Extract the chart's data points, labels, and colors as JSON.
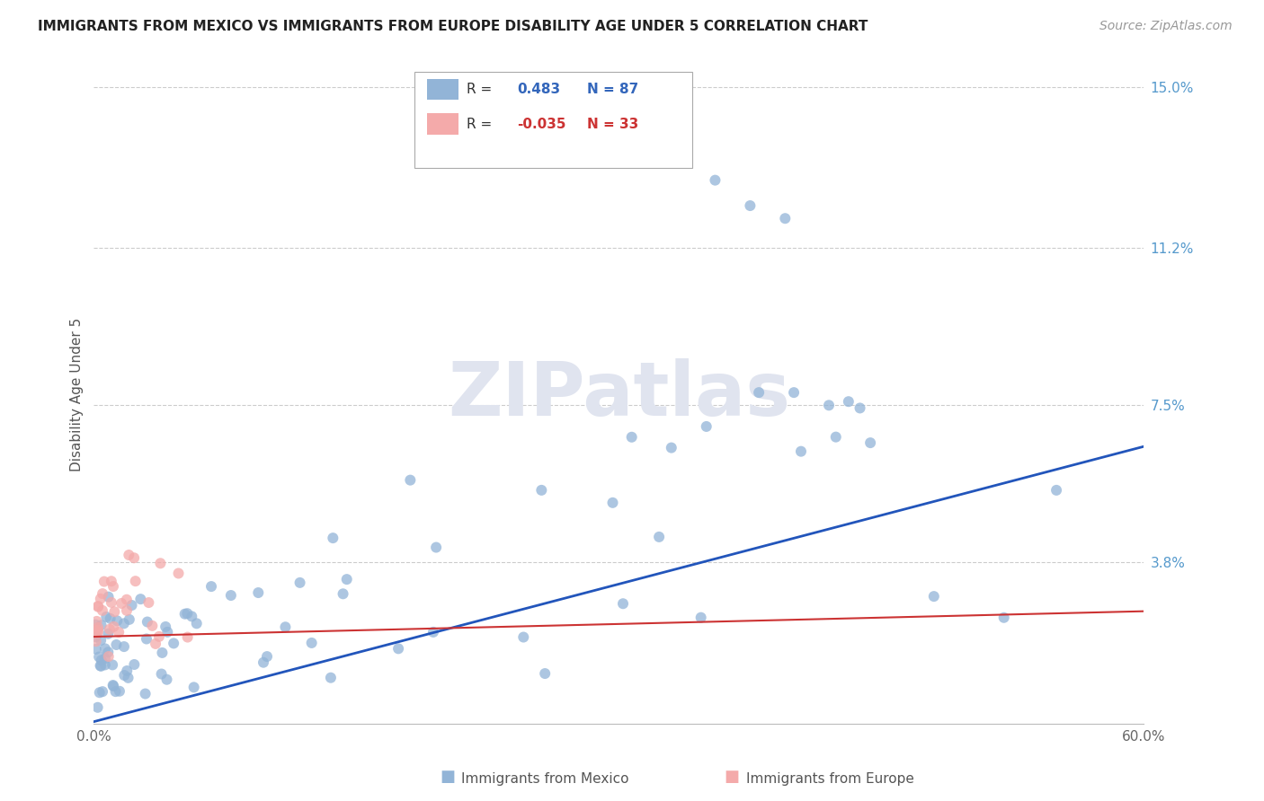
{
  "title": "IMMIGRANTS FROM MEXICO VS IMMIGRANTS FROM EUROPE DISABILITY AGE UNDER 5 CORRELATION CHART",
  "source": "Source: ZipAtlas.com",
  "ylabel": "Disability Age Under 5",
  "legend_mexico": "Immigrants from Mexico",
  "legend_europe": "Immigrants from Europe",
  "R_mexico": "0.483",
  "N_mexico": "87",
  "R_europe": "-0.035",
  "N_europe": "33",
  "color_mexico": "#92B4D7",
  "color_europe": "#F4AAAA",
  "trendline_mexico": "#2255BB",
  "trendline_europe": "#CC3333",
  "watermark_color": "#E0E4EF",
  "ytick_vals": [
    0.0,
    0.038,
    0.075,
    0.112,
    0.15
  ],
  "ytick_labels": [
    "",
    "3.8%",
    "7.5%",
    "11.2%",
    "15.0%"
  ],
  "xlim": [
    0.0,
    0.6
  ],
  "ylim": [
    0.0,
    0.155
  ],
  "title_fontsize": 11,
  "source_fontsize": 10
}
